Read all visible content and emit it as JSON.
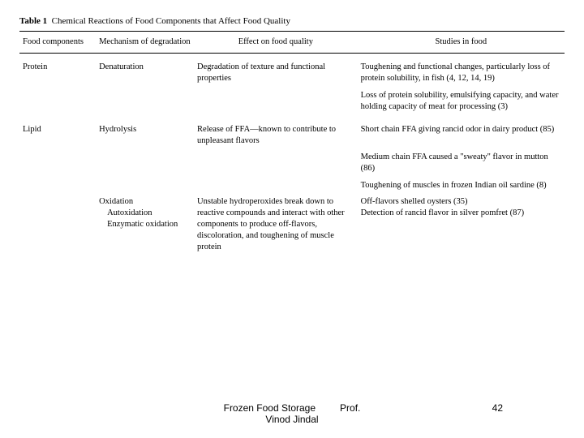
{
  "caption": {
    "label": "Table 1",
    "title": "Chemical Reactions of Food Components that Affect Food Quality"
  },
  "columns": [
    "Food components",
    "Mechanism of degradation",
    "Effect on food quality",
    "Studies in food"
  ],
  "rows": [
    {
      "c1": "Protein",
      "c2": "Denaturation",
      "c3": "Degradation of texture and functional properties",
      "c4": "Toughening and functional changes, particularly loss of protein solubility, in fish (4, 12, 14, 19)"
    },
    {
      "c1": "",
      "c2": "",
      "c3": "",
      "c4": "Loss of protein solubility, emulsifying capacity, and water holding capacity of meat for processing (3)"
    },
    {
      "c1": "Lipid",
      "c2": "Hydrolysis",
      "c3": "Release of FFA—known to contribute to unpleasant flavors",
      "c4": "Short chain FFA giving rancid odor in dairy product (85)"
    },
    {
      "c1": "",
      "c2": "",
      "c3": "",
      "c4": "Medium chain FFA caused a \"sweaty\" flavor in mutton (86)"
    },
    {
      "c1": "",
      "c2": "",
      "c3": "",
      "c4": "Toughening of muscles in frozen Indian oil sardine (8)"
    },
    {
      "c1": "",
      "c2": "Oxidation",
      "c2b": "Autoxidation",
      "c2c": "Enzymatic oxidation",
      "c3": "Unstable hydroperoxides break down to reactive compounds and interact with other components to produce off-flavors, discoloration, and toughening of muscle protein",
      "c4": "Off-flavors shelled oysters (35)",
      "c4b": "Detection of rancid flavor in silver pomfret (87)"
    }
  ],
  "footer": {
    "title_line1": "Frozen Food Storage",
    "prof": "Prof.",
    "title_line2": "Vinod Jindal",
    "page": "42"
  }
}
